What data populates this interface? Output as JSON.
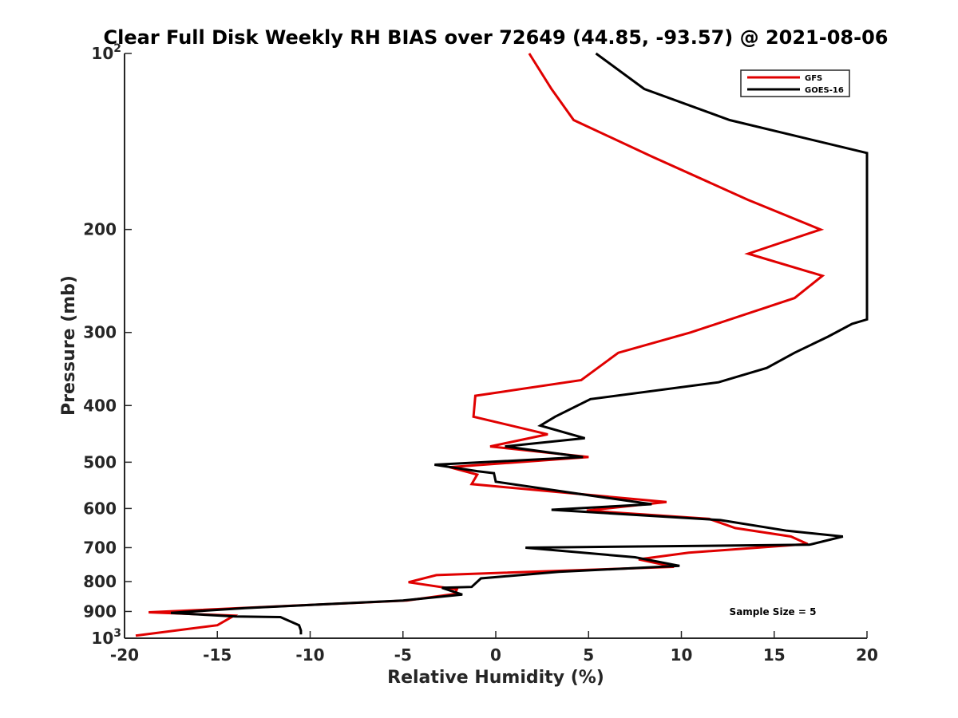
{
  "chart_data": {
    "type": "line",
    "title": "Clear Full Disk Weekly RH BIAS over 72649 (44.85, -93.57) @ 2021-08-06",
    "xlabel": "Relative Humidity (%)",
    "ylabel": "Pressure (mb)",
    "xlim": [
      -20,
      20
    ],
    "ylim": [
      100,
      1000
    ],
    "y_scale": "log",
    "y_reversed": true,
    "x_ticks": [
      "-20",
      "-15",
      "-10",
      "-5",
      "0",
      "5",
      "10",
      "15",
      "20"
    ],
    "y_ticks": [
      {
        "value": 100,
        "base": "10",
        "exp": "2"
      },
      {
        "value": 200,
        "label": "200"
      },
      {
        "value": 300,
        "label": "300"
      },
      {
        "value": 400,
        "label": "400"
      },
      {
        "value": 500,
        "label": "500"
      },
      {
        "value": 600,
        "label": "600"
      },
      {
        "value": 700,
        "label": "700"
      },
      {
        "value": 800,
        "label": "800"
      },
      {
        "value": 900,
        "label": "900"
      },
      {
        "value": 1000,
        "base": "10",
        "exp": "3"
      }
    ],
    "legend_position": "top-right",
    "annotation": "Sample Size = 5",
    "series": [
      {
        "name": "GFS",
        "color": "#e00000",
        "points": [
          [
            1.8,
            100
          ],
          [
            3.0,
            115
          ],
          [
            4.2,
            130
          ],
          [
            8.4,
            150
          ],
          [
            13.6,
            178
          ],
          [
            17.5,
            200
          ],
          [
            13.6,
            220
          ],
          [
            17.6,
            240
          ],
          [
            16.1,
            262
          ],
          [
            10.5,
            300
          ],
          [
            6.6,
            325
          ],
          [
            4.6,
            362
          ],
          [
            -1.1,
            385
          ],
          [
            -1.2,
            418
          ],
          [
            2.8,
            448
          ],
          [
            -0.3,
            470
          ],
          [
            5.0,
            490
          ],
          [
            -2.5,
            510
          ],
          [
            -1.0,
            525
          ],
          [
            -1.3,
            545
          ],
          [
            9.2,
            585
          ],
          [
            4.9,
            605
          ],
          [
            11.5,
            625
          ],
          [
            12.9,
            648
          ],
          [
            15.9,
            670
          ],
          [
            16.8,
            690
          ],
          [
            10.4,
            714
          ],
          [
            7.7,
            733
          ],
          [
            9.6,
            755
          ],
          [
            -3.2,
            780
          ],
          [
            -4.7,
            802
          ],
          [
            -2.1,
            825
          ],
          [
            -2.2,
            840
          ],
          [
            -4.8,
            862
          ],
          [
            -18.7,
            903
          ],
          [
            -14.1,
            915
          ],
          [
            -15.0,
            950
          ],
          [
            -19.4,
            990
          ]
        ]
      },
      {
        "name": "GOES-16",
        "color": "#000000",
        "points": [
          [
            5.4,
            100
          ],
          [
            8.0,
            115
          ],
          [
            12.6,
            130
          ],
          [
            20.0,
            148
          ],
          [
            20.0,
            285
          ],
          [
            19.2,
            290
          ],
          [
            17.9,
            305
          ],
          [
            16.1,
            325
          ],
          [
            14.6,
            345
          ],
          [
            12.0,
            365
          ],
          [
            5.1,
            390
          ],
          [
            3.2,
            418
          ],
          [
            2.4,
            433
          ],
          [
            4.8,
            455
          ],
          [
            0.5,
            470
          ],
          [
            4.7,
            490
          ],
          [
            -3.3,
            505
          ],
          [
            -1.0,
            518
          ],
          [
            -0.1,
            522
          ],
          [
            0.0,
            540
          ],
          [
            5.1,
            570
          ],
          [
            8.4,
            590
          ],
          [
            3.0,
            603
          ],
          [
            12.1,
            628
          ],
          [
            15.7,
            655
          ],
          [
            18.7,
            670
          ],
          [
            16.9,
            692
          ],
          [
            1.6,
            700
          ],
          [
            7.5,
            727
          ],
          [
            9.9,
            752
          ],
          [
            3.4,
            770
          ],
          [
            -0.8,
            790
          ],
          [
            -1.3,
            817
          ],
          [
            -2.9,
            820
          ],
          [
            -1.8,
            842
          ],
          [
            -5.0,
            862
          ],
          [
            -13.5,
            888
          ],
          [
            -17.5,
            905
          ],
          [
            -14.0,
            918
          ],
          [
            -11.6,
            920
          ],
          [
            -10.6,
            950
          ],
          [
            -10.5,
            970
          ],
          [
            -10.5,
            985
          ]
        ]
      }
    ]
  }
}
